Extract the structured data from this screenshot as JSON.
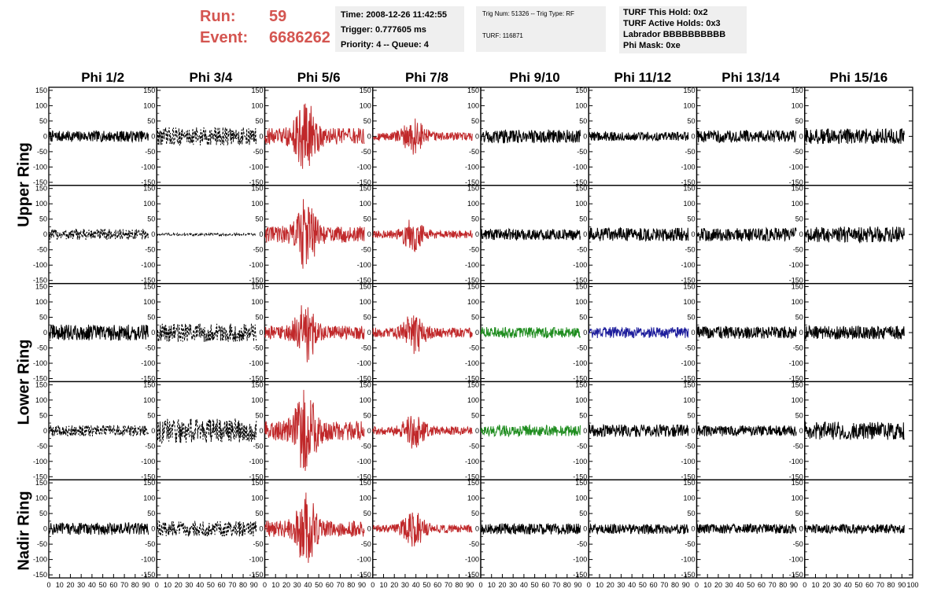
{
  "header": {
    "run_label": "Run:",
    "run_value": "59",
    "event_label": "Event:",
    "event_value": "6686262"
  },
  "info_time": {
    "time": "Time: 2008-12-26 11:42:55",
    "trigger": "Trigger: 0.777605 ms",
    "priority": "Priority: 4 -- Queue: 4"
  },
  "info_trig": {
    "trig": "Trig Num: 51326 -- Trig Type: RF",
    "turf": "TURF: 116871"
  },
  "info_turf": {
    "hold": "TURF This Hold: 0x2",
    "active": "TURF Active Holds: 0x3",
    "labrador": "Labrador BBBBBBBBBB",
    "phimask": "Phi Mask: 0xe"
  },
  "ring_labels": [
    "Upper Ring",
    "Lower Ring",
    "Nadir Ring"
  ],
  "colors": {
    "black": "#000000",
    "red": "#c0282a",
    "green": "#1e8c1e",
    "blue": "#1e1e9c"
  },
  "chart_data": {
    "type": "line",
    "columns": [
      "Phi 1/2",
      "Phi 3/4",
      "Phi 5/6",
      "Phi 7/8",
      "Phi 9/10",
      "Phi 11/12",
      "Phi 13/14",
      "Phi 15/16"
    ],
    "rows": 5,
    "xlim": [
      0,
      100
    ],
    "ylim": [
      -160,
      160
    ],
    "y_ticks": [
      -150,
      -100,
      -50,
      0,
      50,
      100,
      150
    ],
    "y_ticks_small": [
      -150,
      -100,
      -50,
      0,
      50,
      100,
      150
    ],
    "x_ticks": [
      0,
      10,
      20,
      30,
      40,
      50,
      60,
      70,
      80,
      90
    ],
    "x_ticks_last": [
      0,
      10,
      20,
      30,
      40,
      50,
      60,
      70,
      80,
      90,
      100
    ],
    "panels": [
      [
        {
          "color": "black",
          "style": "solid",
          "amp": 18
        },
        {
          "color": "black",
          "style": "dashed",
          "amp": 30
        },
        {
          "color": "red",
          "style": "solid",
          "amp": 60
        },
        {
          "color": "red",
          "style": "solid",
          "amp": 30
        },
        {
          "color": "black",
          "style": "solid",
          "amp": 22
        },
        {
          "color": "black",
          "style": "solid",
          "amp": 15
        },
        {
          "color": "black",
          "style": "solid",
          "amp": 20
        },
        {
          "color": "black",
          "style": "solid",
          "amp": 25
        }
      ],
      [
        {
          "color": "black",
          "style": "dashed",
          "amp": 18
        },
        {
          "color": "black",
          "style": "dashed",
          "amp": 4
        },
        {
          "color": "red",
          "style": "solid",
          "amp": 60
        },
        {
          "color": "red",
          "style": "solid",
          "amp": 28
        },
        {
          "color": "black",
          "style": "solid",
          "amp": 18
        },
        {
          "color": "black",
          "style": "solid",
          "amp": 22
        },
        {
          "color": "black",
          "style": "solid",
          "amp": 22
        },
        {
          "color": "black",
          "style": "solid",
          "amp": 26
        }
      ],
      [
        {
          "color": "black",
          "style": "solid",
          "amp": 26
        },
        {
          "color": "black",
          "style": "dashed",
          "amp": 30
        },
        {
          "color": "red",
          "style": "solid",
          "amp": 50
        },
        {
          "color": "red",
          "style": "solid",
          "amp": 36
        },
        {
          "color": "green",
          "style": "solid",
          "amp": 18
        },
        {
          "color": "blue",
          "style": "solid",
          "amp": 18
        },
        {
          "color": "black",
          "style": "solid",
          "amp": 20
        },
        {
          "color": "black",
          "style": "solid",
          "amp": 22
        }
      ],
      [
        {
          "color": "black",
          "style": "dashed",
          "amp": 18
        },
        {
          "color": "black",
          "style": "dashed",
          "amp": 40
        },
        {
          "color": "red",
          "style": "solid",
          "amp": 70
        },
        {
          "color": "red",
          "style": "solid",
          "amp": 30
        },
        {
          "color": "green",
          "style": "solid",
          "amp": 18
        },
        {
          "color": "black",
          "style": "solid",
          "amp": 20
        },
        {
          "color": "black",
          "style": "solid",
          "amp": 18
        },
        {
          "color": "black",
          "style": "solid",
          "amp": 30
        }
      ],
      [
        {
          "color": "black",
          "style": "solid",
          "amp": 20
        },
        {
          "color": "black",
          "style": "dashed",
          "amp": 25
        },
        {
          "color": "red",
          "style": "solid",
          "amp": 60
        },
        {
          "color": "red",
          "style": "solid",
          "amp": 30
        },
        {
          "color": "black",
          "style": "solid",
          "amp": 18
        },
        {
          "color": "black",
          "style": "solid",
          "amp": 16
        },
        {
          "color": "black",
          "style": "solid",
          "amp": 16
        },
        {
          "color": "black",
          "style": "solid",
          "amp": 15
        }
      ]
    ]
  }
}
